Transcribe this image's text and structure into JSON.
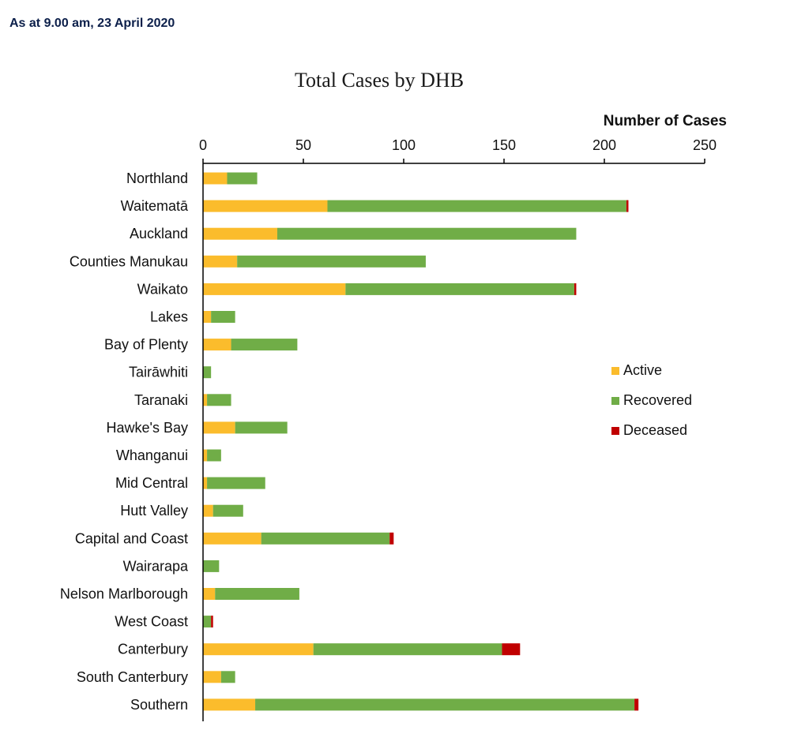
{
  "header": {
    "date_text": "As at 9.00 am, 23 April 2020"
  },
  "chart_data": {
    "type": "bar",
    "orientation": "horizontal",
    "stacked": true,
    "title": "Total Cases by DHB",
    "xlabel": "Number of Cases",
    "ylabel": "",
    "xlim": [
      0,
      250
    ],
    "x_ticks": [
      0,
      50,
      100,
      150,
      200,
      250
    ],
    "grid": false,
    "legend_position": "right",
    "categories": [
      "Northland",
      "Waitematā",
      "Auckland",
      "Counties Manukau",
      "Waikato",
      "Lakes",
      "Bay of Plenty",
      "Tairāwhiti",
      "Taranaki",
      "Hawke's Bay",
      "Whanganui",
      "Mid Central",
      "Hutt Valley",
      "Capital and Coast",
      "Wairarapa",
      "Nelson Marlborough",
      "West Coast",
      "Canterbury",
      "South Canterbury",
      "Southern"
    ],
    "series": [
      {
        "name": "Active",
        "color": "#FBBC2C",
        "values": [
          12,
          62,
          37,
          17,
          71,
          4,
          14,
          0,
          2,
          16,
          2,
          2,
          5,
          29,
          0,
          6,
          0,
          55,
          9,
          26
        ]
      },
      {
        "name": "Recovered",
        "color": "#70AD47",
        "values": [
          15,
          149,
          149,
          94,
          114,
          12,
          33,
          4,
          12,
          26,
          7,
          29,
          15,
          64,
          8,
          42,
          4,
          94,
          7,
          189
        ]
      },
      {
        "name": "Deceased",
        "color": "#C00000",
        "values": [
          0,
          1,
          0,
          0,
          1,
          0,
          0,
          0,
          0,
          0,
          0,
          0,
          0,
          2,
          0,
          0,
          1,
          9,
          0,
          2
        ]
      }
    ]
  }
}
